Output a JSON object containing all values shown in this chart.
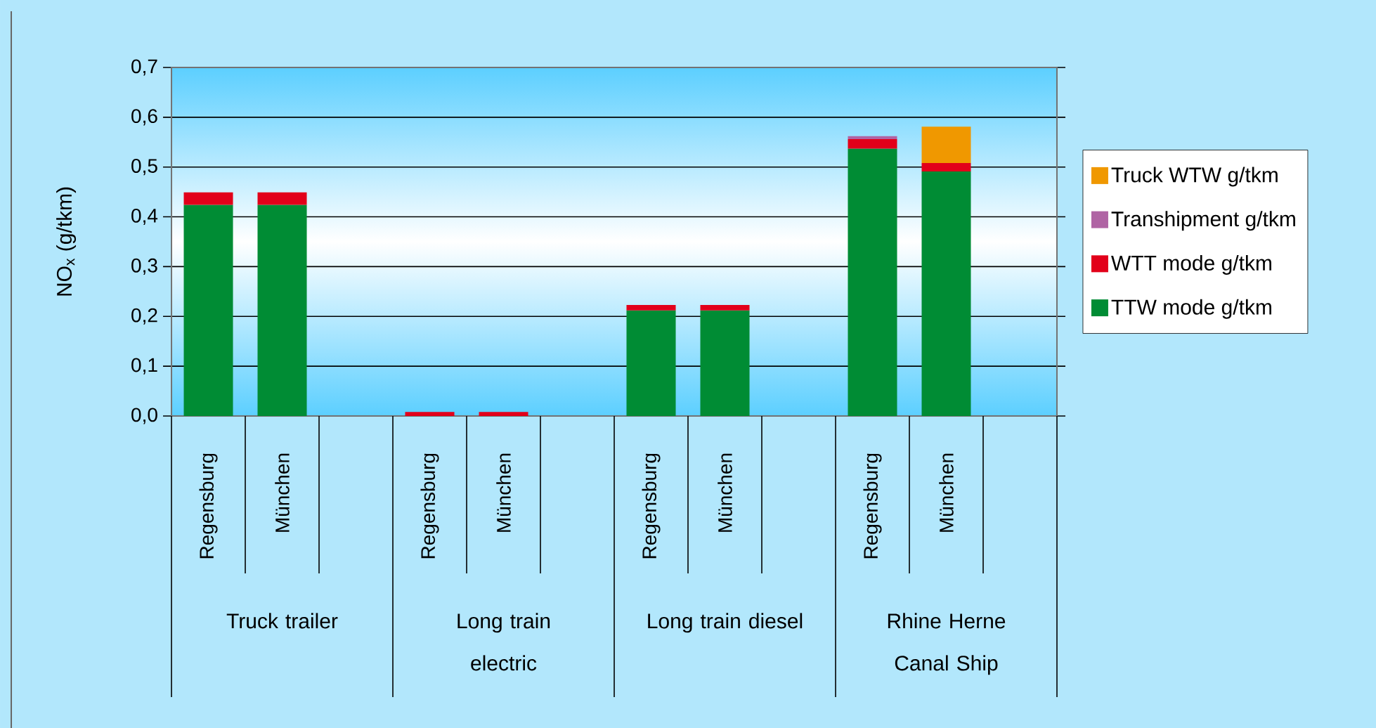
{
  "chart_data": {
    "type": "bar",
    "stacked": true,
    "ylabel": "NO$_{x}$ (g/tkm)",
    "categories": [
      "Regensburg",
      "München",
      null,
      "Regensburg",
      "München",
      null,
      "Regensburg",
      "München",
      null,
      "Regensburg",
      "München",
      null
    ],
    "series": [
      {
        "name": "TTW mode g/tkm",
        "color": "#008c34",
        "values": [
          0.424,
          0.424,
          null,
          null,
          null,
          null,
          0.212,
          0.212,
          null,
          0.537,
          0.491,
          null
        ]
      },
      {
        "name": "WTT mode g/tkm",
        "color": "#e2001a",
        "values": [
          0.025,
          0.025,
          null,
          0.008,
          0.008,
          null,
          0.011,
          0.011,
          null,
          0.019,
          0.017,
          null
        ]
      },
      {
        "name": "Transhipment g/tkm",
        "color": "#b064a4",
        "values": [
          null,
          null,
          null,
          null,
          null,
          null,
          null,
          null,
          null,
          0.006,
          null,
          null
        ]
      },
      {
        "name": "Truck WTW g/tkm",
        "color": "#f09800",
        "values": [
          null,
          null,
          null,
          null,
          null,
          null,
          null,
          null,
          null,
          null,
          0.073,
          null
        ]
      }
    ],
    "ylim": [
      0,
      0.7
    ],
    "yticks": [
      {
        "value": 0,
        "label": "0,0"
      },
      {
        "value": 0.1,
        "label": "0,1"
      },
      {
        "value": 0.2,
        "label": "0,2"
      },
      {
        "value": 0.3,
        "label": "0,3"
      },
      {
        "value": 0.4,
        "label": "0,4"
      },
      {
        "value": 0.5,
        "label": "0,5"
      },
      {
        "value": 0.6,
        "label": "0,6"
      },
      {
        "value": 0.7,
        "label": "0,7"
      }
    ],
    "grid": "y",
    "legend": "right",
    "annotations": [
      "Truck trailer",
      "Long train electric",
      "Long train diesel",
      "Rhine Herne Canal Ship"
    ]
  }
}
